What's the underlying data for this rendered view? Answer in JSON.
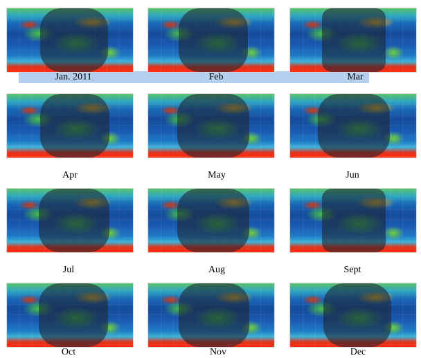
{
  "panels": [
    {
      "label": "Jan. 2011"
    },
    {
      "label": "Feb"
    },
    {
      "label": "Mar"
    },
    {
      "label": "Apr"
    },
    {
      "label": "May"
    },
    {
      "label": "Jun"
    },
    {
      "label": "Jul"
    },
    {
      "label": "Aug"
    },
    {
      "label": "Sept"
    },
    {
      "label": "Oct"
    },
    {
      "label": "Nov"
    },
    {
      "label": "Dec"
    }
  ]
}
